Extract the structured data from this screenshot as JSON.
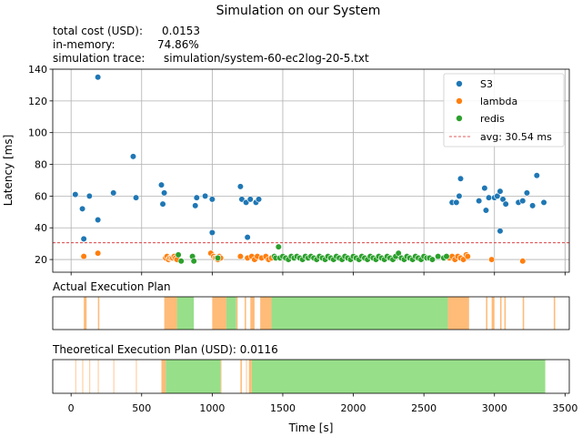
{
  "figure": {
    "title": "Simulation on our System",
    "info_lines": [
      {
        "label": "total cost (USD):",
        "value": "0.0153"
      },
      {
        "label": "in-memory:",
        "value": "74.86%"
      },
      {
        "label": "simulation trace:",
        "value": "simulation/system-60-ec2log-20-5.txt"
      }
    ]
  },
  "colors": {
    "S3": "#1f77b4",
    "lambda": "#ff7f0e",
    "redis": "#2ca02c",
    "avg_line": "#d62728",
    "plan_lambda": "#ffbb78",
    "plan_redis": "#98df8a",
    "plan_s3_tick": "#ffbb78"
  },
  "chart_data": [
    {
      "type": "scatter",
      "title": "Simulation on our System",
      "xlabel": "",
      "ylabel": "Latency [ms]",
      "xlim": [
        -130,
        3530
      ],
      "ylim": [
        12,
        140
      ],
      "xticks": [
        0,
        500,
        1000,
        1500,
        2000,
        2500,
        3000,
        3500
      ],
      "yticks": [
        20,
        40,
        60,
        80,
        100,
        120,
        140
      ],
      "grid": true,
      "legend_position": "top-right",
      "avg_line": {
        "label": "avg: 30.54 ms",
        "value": 30.54
      },
      "series": [
        {
          "name": "S3",
          "points": [
            [
              30,
              61
            ],
            [
              80,
              52
            ],
            [
              90,
              33
            ],
            [
              130,
              60
            ],
            [
              190,
              135
            ],
            [
              190,
              45
            ],
            [
              300,
              62
            ],
            [
              440,
              85
            ],
            [
              460,
              59
            ],
            [
              640,
              67
            ],
            [
              650,
              55
            ],
            [
              660,
              62
            ],
            [
              880,
              54
            ],
            [
              890,
              59
            ],
            [
              950,
              60
            ],
            [
              1000,
              58
            ],
            [
              1000,
              37
            ],
            [
              1200,
              66
            ],
            [
              1210,
              58
            ],
            [
              1240,
              56
            ],
            [
              1250,
              34
            ],
            [
              1270,
              58
            ],
            [
              1310,
              56
            ],
            [
              1330,
              58
            ],
            [
              2700,
              56
            ],
            [
              2730,
              56
            ],
            [
              2750,
              60
            ],
            [
              2760,
              71
            ],
            [
              2890,
              57
            ],
            [
              2930,
              65
            ],
            [
              2940,
              51
            ],
            [
              2960,
              59
            ],
            [
              3000,
              59
            ],
            [
              3020,
              60
            ],
            [
              3040,
              63
            ],
            [
              3040,
              38
            ],
            [
              3060,
              58
            ],
            [
              3080,
              55
            ],
            [
              3170,
              56
            ],
            [
              3200,
              57
            ],
            [
              3230,
              62
            ],
            [
              3270,
              54
            ],
            [
              3300,
              73
            ],
            [
              3350,
              56
            ]
          ]
        },
        {
          "name": "lambda",
          "points": [
            [
              90,
              22
            ],
            [
              190,
              24
            ],
            [
              670,
              21
            ],
            [
              680,
              22
            ],
            [
              690,
              20
            ],
            [
              700,
              21
            ],
            [
              710,
              21
            ],
            [
              720,
              21
            ],
            [
              730,
              22
            ],
            [
              740,
              21
            ],
            [
              750,
              20
            ],
            [
              990,
              24
            ],
            [
              1010,
              22
            ],
            [
              1020,
              21
            ],
            [
              1030,
              21
            ],
            [
              1040,
              20
            ],
            [
              1050,
              22
            ],
            [
              1060,
              21
            ],
            [
              1200,
              22
            ],
            [
              1250,
              21
            ],
            [
              1280,
              22
            ],
            [
              1300,
              20
            ],
            [
              1320,
              22
            ],
            [
              1350,
              21
            ],
            [
              1380,
              22
            ],
            [
              1400,
              20
            ],
            [
              1420,
              21
            ],
            [
              2680,
              21
            ],
            [
              2700,
              22
            ],
            [
              2720,
              20
            ],
            [
              2740,
              22
            ],
            [
              2760,
              21
            ],
            [
              2780,
              20
            ],
            [
              2800,
              23
            ],
            [
              2810,
              22
            ],
            [
              2980,
              20
            ],
            [
              3200,
              19
            ]
          ]
        },
        {
          "name": "redis",
          "points": [
            [
              760,
              23
            ],
            [
              780,
              19
            ],
            [
              860,
              22
            ],
            [
              870,
              19
            ],
            [
              1040,
              21
            ],
            [
              1440,
              22
            ],
            [
              1450,
              21
            ],
            [
              1470,
              28
            ],
            [
              1480,
              21
            ],
            [
              1500,
              22
            ],
            [
              1520,
              21
            ],
            [
              1540,
              20
            ],
            [
              1560,
              22
            ],
            [
              1580,
              21
            ],
            [
              1600,
              22
            ],
            [
              1620,
              21
            ],
            [
              1640,
              20
            ],
            [
              1660,
              22
            ],
            [
              1680,
              21
            ],
            [
              1700,
              22
            ],
            [
              1720,
              21
            ],
            [
              1740,
              20
            ],
            [
              1760,
              22
            ],
            [
              1780,
              21
            ],
            [
              1800,
              20
            ],
            [
              1820,
              22
            ],
            [
              1840,
              21
            ],
            [
              1860,
              20
            ],
            [
              1880,
              22
            ],
            [
              1900,
              21
            ],
            [
              1920,
              20
            ],
            [
              1940,
              22
            ],
            [
              1960,
              21
            ],
            [
              1980,
              20
            ],
            [
              2000,
              22
            ],
            [
              2020,
              21
            ],
            [
              2040,
              20
            ],
            [
              2060,
              22
            ],
            [
              2080,
              21
            ],
            [
              2100,
              20
            ],
            [
              2120,
              22
            ],
            [
              2140,
              21
            ],
            [
              2160,
              20
            ],
            [
              2180,
              22
            ],
            [
              2200,
              21
            ],
            [
              2220,
              20
            ],
            [
              2240,
              22
            ],
            [
              2260,
              21
            ],
            [
              2280,
              20
            ],
            [
              2300,
              22
            ],
            [
              2320,
              24
            ],
            [
              2340,
              21
            ],
            [
              2360,
              20
            ],
            [
              2380,
              22
            ],
            [
              2400,
              21
            ],
            [
              2420,
              20
            ],
            [
              2440,
              22
            ],
            [
              2460,
              21
            ],
            [
              2480,
              20
            ],
            [
              2500,
              22
            ],
            [
              2520,
              21
            ],
            [
              2540,
              21
            ],
            [
              2560,
              20
            ],
            [
              2600,
              22
            ],
            [
              2640,
              21
            ],
            [
              2660,
              22
            ]
          ]
        }
      ]
    },
    {
      "type": "timeline",
      "title": "Actual Execution Plan",
      "xlim": [
        -130,
        3530
      ],
      "lambda_intervals": [
        [
          90,
          110
        ],
        [
          190,
          200
        ],
        [
          660,
          750
        ],
        [
          1000,
          1100
        ],
        [
          1170,
          1180
        ],
        [
          1230,
          1240
        ],
        [
          1270,
          1300
        ],
        [
          1340,
          1420
        ],
        [
          2670,
          2820
        ],
        [
          2940,
          2950
        ],
        [
          2980,
          3000
        ],
        [
          3040,
          3050
        ],
        [
          3070,
          3080
        ],
        [
          3200,
          3210
        ],
        [
          3420,
          3430
        ]
      ],
      "redis_intervals": [
        [
          750,
          870
        ],
        [
          1100,
          1170
        ],
        [
          1420,
          2670
        ]
      ]
    },
    {
      "type": "timeline",
      "title": "Theoretical Execution Plan (USD): 0.0116",
      "xlim": [
        -130,
        3530
      ],
      "lambda_intervals": [
        [
          30,
          35
        ],
        [
          80,
          85
        ],
        [
          130,
          135
        ],
        [
          190,
          195
        ],
        [
          300,
          305
        ],
        [
          460,
          465
        ],
        [
          640,
          670
        ],
        [
          1060,
          1065
        ],
        [
          1200,
          1210
        ],
        [
          1240,
          1245
        ],
        [
          1260,
          1280
        ]
      ],
      "redis_intervals": [
        [
          670,
          1060
        ],
        [
          1280,
          3360
        ]
      ]
    }
  ],
  "x_axis": {
    "label": "Time [s]",
    "ticks": [
      "0",
      "500",
      "1000",
      "1500",
      "2000",
      "2500",
      "3000",
      "3500"
    ]
  }
}
